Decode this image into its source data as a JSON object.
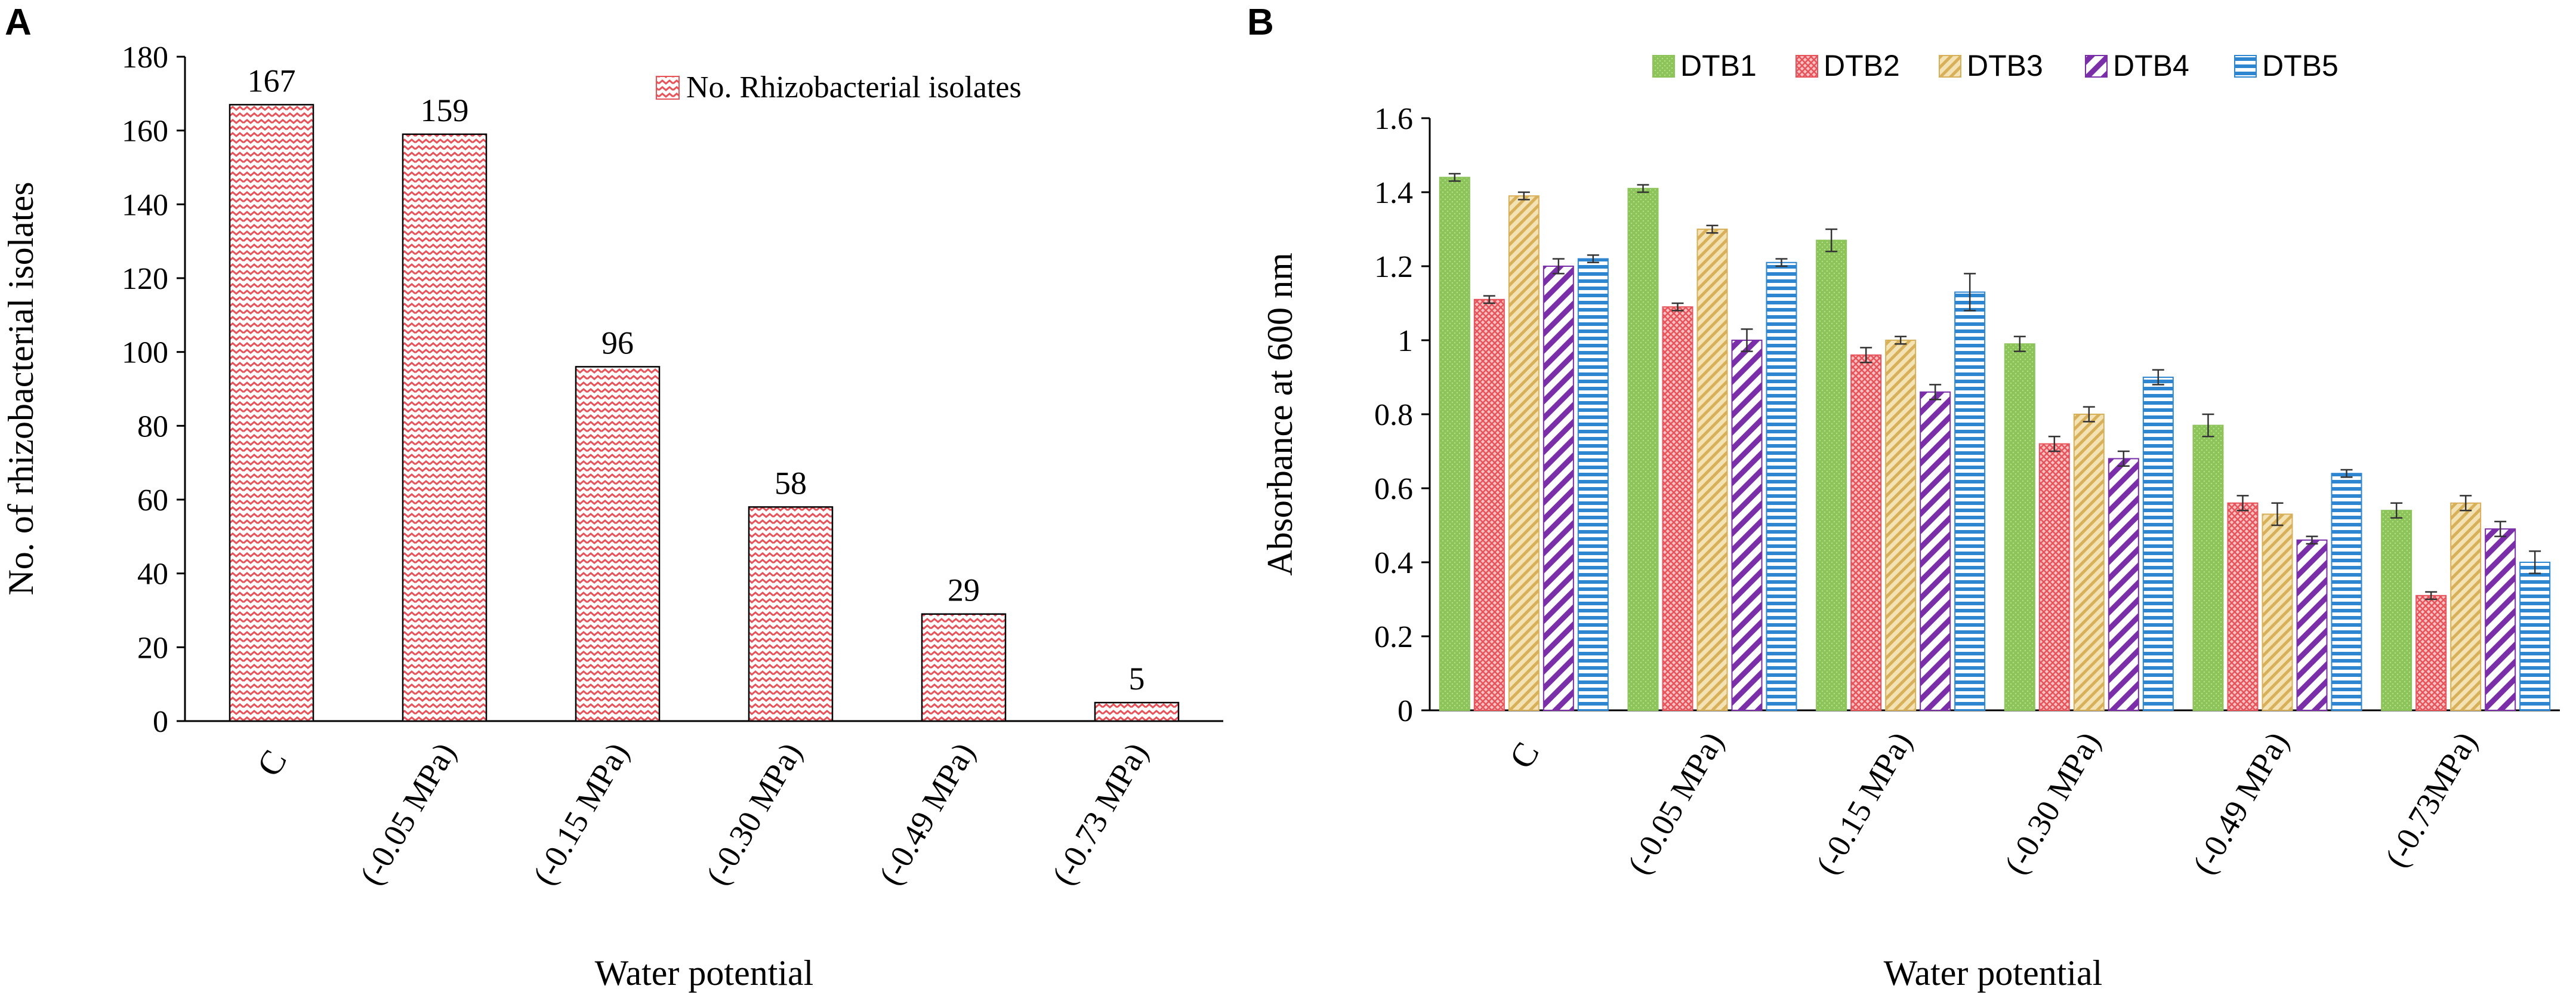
{
  "panel_labels": [
    "A",
    "B"
  ],
  "colors": {
    "red_pattern": "#e8535a",
    "green": "#8cc45a",
    "yellow": "#d9b05a",
    "purple": "#7a2ea8",
    "blue": "#2e86d1",
    "axis": "#000000"
  },
  "chart_data": [
    {
      "type": "bar",
      "panel": "A",
      "title": "",
      "xlabel": "Water potential",
      "ylabel": "No. of rhizobacterial isolates",
      "ylim": [
        0,
        180
      ],
      "yticks": [
        0,
        20,
        40,
        60,
        80,
        100,
        120,
        140,
        160,
        180
      ],
      "categories": [
        "C",
        "(-0.05 MPa)",
        "(-0.15 MPa)",
        "(-0.30 MPa)",
        "(-0.49 MPa)",
        "(-0.73 MPa)"
      ],
      "series": [
        {
          "name": "No. Rhizobacterial isolates",
          "values": [
            167,
            159,
            96,
            58,
            29,
            5
          ]
        }
      ],
      "data_labels": [
        "167",
        "159",
        "96",
        "58",
        "29",
        "5"
      ],
      "legend": "top-right"
    },
    {
      "type": "bar",
      "panel": "B",
      "title": "",
      "xlabel": "Water potential",
      "ylabel": "Absorbance at 600 nm",
      "ylim": [
        0,
        1.6
      ],
      "yticks": [
        "0",
        "0.2",
        "0.4",
        "0.6",
        "0.8",
        "1",
        "1.2",
        "1.4",
        "1.6"
      ],
      "categories": [
        "C",
        "(-0.05 MPa)",
        "(-0.15 MPa)",
        "(-0.30 MPa)",
        "(-0.49 MPa)",
        "(-0.73MPa)"
      ],
      "series": [
        {
          "name": "DTB1",
          "values": [
            1.44,
            1.41,
            1.27,
            0.99,
            0.77,
            0.54
          ],
          "errors": [
            0.01,
            0.01,
            0.03,
            0.02,
            0.03,
            0.02
          ]
        },
        {
          "name": "DTB2",
          "values": [
            1.11,
            1.09,
            0.96,
            0.72,
            0.56,
            0.31
          ],
          "errors": [
            0.01,
            0.01,
            0.02,
            0.02,
            0.02,
            0.01
          ]
        },
        {
          "name": "DTB3",
          "values": [
            1.39,
            1.3,
            1.0,
            0.8,
            0.53,
            0.56
          ],
          "errors": [
            0.01,
            0.01,
            0.01,
            0.02,
            0.03,
            0.02
          ]
        },
        {
          "name": "DTB4",
          "values": [
            1.2,
            1.0,
            0.86,
            0.68,
            0.46,
            0.49
          ],
          "errors": [
            0.02,
            0.03,
            0.02,
            0.02,
            0.01,
            0.02
          ]
        },
        {
          "name": "DTB5",
          "values": [
            1.22,
            1.21,
            1.13,
            0.9,
            0.64,
            0.4
          ],
          "errors": [
            0.01,
            0.01,
            0.05,
            0.02,
            0.01,
            0.03
          ]
        }
      ],
      "legend": "top"
    }
  ]
}
